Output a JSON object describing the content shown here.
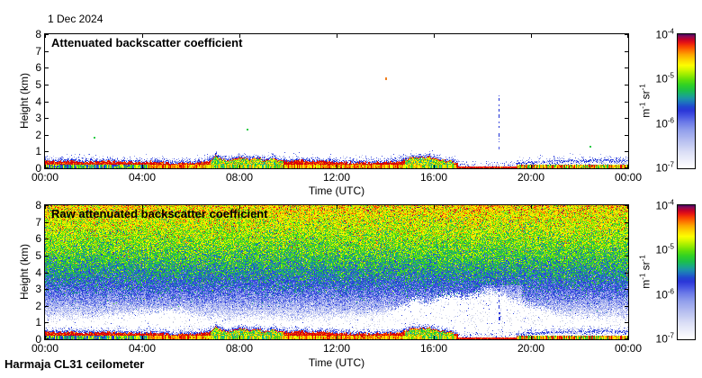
{
  "figure": {
    "date_label": "1 Dec 2024",
    "footer": "Harmaja CL31 ceilometer",
    "background": "#ffffff",
    "frame_color": "#000000",
    "text_color": "#000000"
  },
  "chart_data": [
    {
      "type": "heatmap",
      "title": "Attenuated backscatter coefficient",
      "xlabel": "Time (UTC)",
      "ylabel": "Height (km)",
      "x_tick_labels": [
        "00:00",
        "04:00",
        "08:00",
        "12:00",
        "16:00",
        "20:00",
        "00:00"
      ],
      "x_tick_hours": [
        0,
        4,
        8,
        12,
        16,
        20,
        24
      ],
      "y_tick_values": [
        0,
        1,
        2,
        3,
        4,
        5,
        6,
        7,
        8
      ],
      "xlim_hours": [
        0,
        24
      ],
      "ylim_km": [
        0,
        8
      ],
      "grid": false,
      "background_value": "clear (white, below 10^-7)",
      "colorbar": {
        "base": "10",
        "tick_exponents": [
          "-4",
          "-5",
          "-6",
          "-7"
        ],
        "unit_parts": [
          {
            "t": "m"
          },
          {
            "s": "-1"
          },
          {
            "t": " sr"
          },
          {
            "s": "-1"
          }
        ],
        "range_log10": [
          -7,
          -4
        ]
      },
      "spike": {
        "time_h": 18.67,
        "from_km": 4.3,
        "to_km": 0.78,
        "style": "dashed",
        "colors": [
          "#1b2fd4",
          "#4553e2"
        ]
      },
      "point_echoes": [
        {
          "time_h": 2.0,
          "height_km": 1.85,
          "color": "#22cc44"
        },
        {
          "time_h": 8.3,
          "height_km": 2.3,
          "color": "#22cc44"
        },
        {
          "time_h": 14.0,
          "height_km": 5.35,
          "color": "#f08020"
        },
        {
          "time_h": 22.4,
          "height_km": 1.3,
          "color": "#22cc44"
        }
      ]
    },
    {
      "type": "heatmap",
      "title": "Raw attenuated backscatter coefficient",
      "xlabel": "Time (UTC)",
      "ylabel": "Height (km)",
      "x_tick_labels": [
        "00:00",
        "04:00",
        "08:00",
        "12:00",
        "16:00",
        "20:00",
        "00:00"
      ],
      "x_tick_hours": [
        0,
        4,
        8,
        12,
        16,
        20,
        24
      ],
      "y_tick_values": [
        0,
        1,
        2,
        3,
        4,
        5,
        6,
        7,
        8
      ],
      "xlim_hours": [
        0,
        24
      ],
      "ylim_km": [
        0,
        8
      ],
      "grid": false,
      "colorbar": {
        "base": "10",
        "tick_exponents": [
          "-4",
          "-5",
          "-6",
          "-7"
        ],
        "unit_parts": [
          {
            "t": "m"
          },
          {
            "s": "-1"
          },
          {
            "t": " sr"
          },
          {
            "s": "-1"
          }
        ],
        "range_log10": [
          -7,
          -4
        ]
      },
      "noise_mean_log10_by_km": [
        [
          0.8,
          -6.95
        ],
        [
          1.2,
          -6.75
        ],
        [
          1.6,
          -6.55
        ],
        [
          2.0,
          -6.3
        ],
        [
          2.5,
          -6.02
        ],
        [
          3.0,
          -5.78
        ],
        [
          3.5,
          -5.58
        ],
        [
          4.0,
          -5.42
        ],
        [
          4.5,
          -5.28
        ],
        [
          5.0,
          -5.15
        ],
        [
          5.5,
          -5.04
        ],
        [
          6.0,
          -4.94
        ],
        [
          6.5,
          -4.85
        ],
        [
          7.0,
          -4.77
        ],
        [
          7.5,
          -4.67
        ],
        [
          8.0,
          -4.57
        ]
      ],
      "noise_sigma_log10": 0.26,
      "clear_gap_top_km": [
        [
          0,
          0.95
        ],
        [
          1,
          1.0
        ],
        [
          2,
          1.05
        ],
        [
          3,
          1.2
        ],
        [
          4,
          1.35
        ],
        [
          5,
          1.45
        ],
        [
          5.8,
          1.35
        ],
        [
          6.5,
          1.0
        ],
        [
          7,
          0.85
        ],
        [
          7.5,
          0.9
        ],
        [
          8,
          0.95
        ],
        [
          9,
          1.05
        ],
        [
          10,
          1.0
        ],
        [
          11,
          0.95
        ],
        [
          12,
          1.05
        ],
        [
          13,
          1.15
        ],
        [
          14,
          1.3
        ],
        [
          14.7,
          1.7
        ],
        [
          15.2,
          2.1
        ],
        [
          15.7,
          1.9
        ],
        [
          16.2,
          2.2
        ],
        [
          16.8,
          2.4
        ],
        [
          17.3,
          2.2
        ],
        [
          17.8,
          2.5
        ],
        [
          18.3,
          2.6
        ],
        [
          18.8,
          2.45
        ],
        [
          19.3,
          2.1
        ],
        [
          19.8,
          1.8
        ],
        [
          20.5,
          1.5
        ],
        [
          21.2,
          1.25
        ],
        [
          22,
          1.1
        ],
        [
          23,
          1.0
        ],
        [
          24,
          0.95
        ]
      ],
      "quiet_column_hours": [
        17.9,
        19.6
      ],
      "spike": {
        "time_h": 18.67,
        "from_km": 3.1,
        "to_km": 0.8,
        "style": "dashed",
        "colors": [
          "#1b2fd4",
          "#2b36d8"
        ]
      }
    }
  ],
  "surface_layer": {
    "band_top_km": [
      [
        0,
        0.55
      ],
      [
        0.5,
        0.5
      ],
      [
        1,
        0.52
      ],
      [
        1.5,
        0.48
      ],
      [
        2,
        0.5
      ],
      [
        2.5,
        0.52
      ],
      [
        3,
        0.48
      ],
      [
        3.5,
        0.45
      ],
      [
        4,
        0.42
      ],
      [
        4.5,
        0.5
      ],
      [
        5,
        0.45
      ],
      [
        5.3,
        0.35
      ],
      [
        5.6,
        0.42
      ],
      [
        6,
        0.4
      ],
      [
        6.4,
        0.45
      ],
      [
        6.8,
        0.55
      ],
      [
        7.0,
        0.85
      ],
      [
        7.2,
        0.7
      ],
      [
        7.5,
        0.55
      ],
      [
        7.8,
        0.65
      ],
      [
        8.1,
        0.75
      ],
      [
        8.4,
        0.6
      ],
      [
        8.7,
        0.7
      ],
      [
        9.0,
        0.55
      ],
      [
        9.3,
        0.7
      ],
      [
        9.6,
        0.6
      ],
      [
        10,
        0.5
      ],
      [
        10.5,
        0.55
      ],
      [
        11,
        0.5
      ],
      [
        11.5,
        0.52
      ],
      [
        12,
        0.45
      ],
      [
        12.5,
        0.42
      ],
      [
        13,
        0.45
      ],
      [
        13.5,
        0.42
      ],
      [
        14,
        0.45
      ],
      [
        14.5,
        0.48
      ],
      [
        14.9,
        0.65
      ],
      [
        15.2,
        0.8
      ],
      [
        15.5,
        0.7
      ],
      [
        15.8,
        0.8
      ],
      [
        16.1,
        0.65
      ],
      [
        16.4,
        0.55
      ],
      [
        16.7,
        0.5
      ],
      [
        17.0,
        0.35
      ],
      [
        17.4,
        0.28
      ],
      [
        18,
        0.25
      ],
      [
        18.6,
        0.22
      ],
      [
        19,
        0.26
      ],
      [
        19.4,
        0.32
      ],
      [
        19.8,
        0.35
      ],
      [
        20.3,
        0.4
      ],
      [
        21,
        0.45
      ],
      [
        21.6,
        0.5
      ],
      [
        22,
        0.46
      ],
      [
        22.5,
        0.5
      ],
      [
        23,
        0.52
      ],
      [
        23.5,
        0.46
      ],
      [
        24,
        0.5
      ]
    ],
    "regions": {
      "cool_bottom_hours": [
        [
          0,
          4.2
        ]
      ],
      "colorful_interior_hours": [
        [
          6.8,
          9.8
        ],
        [
          14.8,
          16.8
        ]
      ],
      "thin_band_hours": [
        [
          17.0,
          19.4
        ]
      ],
      "speckled_band_hours": [
        [
          19.4,
          24
        ]
      ]
    },
    "palettes": {
      "cool": [
        "#1dc434",
        "#18b0a0",
        "#2234cc",
        "#7ee400",
        "#3347e0",
        "#fdfd00"
      ],
      "colorful": [
        "#1dc434",
        "#fdfd00",
        "#7ee400",
        "#18b0a0",
        "#fda600"
      ],
      "warm": [
        "#fda600",
        "#fdfd00",
        "#f87000",
        "#e00000",
        "#c8f200"
      ],
      "late": [
        "#e00000",
        "#fda600",
        "#1dc434",
        "#fdfd00"
      ]
    },
    "colors": {
      "core_reds": [
        "#a81028",
        "#e00000",
        "#f83c00",
        "#c00020",
        "#fda600"
      ],
      "cap_blues": [
        "#1b2fd4",
        "#3347e0",
        "#8898ea",
        "#b8c0f0"
      ],
      "speckle_blues": [
        "#4553e2",
        "#8898ea",
        "#b8c0f0"
      ],
      "speckle_grays": [
        "#c9cdde",
        "#dadef6"
      ]
    }
  },
  "colormap": {
    "value_range_log10": [
      -7,
      -4
    ],
    "stops": [
      [
        0.0,
        "#ffffff"
      ],
      [
        0.05,
        "#f0f1fb"
      ],
      [
        0.12,
        "#dadef6"
      ],
      [
        0.2,
        "#b8c0f0"
      ],
      [
        0.28,
        "#93a0ec"
      ],
      [
        0.34,
        "#6d7ce8"
      ],
      [
        0.39,
        "#4553e2"
      ],
      [
        0.43,
        "#2b36d8"
      ],
      [
        0.46,
        "#2049cf"
      ],
      [
        0.49,
        "#1e6fc0"
      ],
      [
        0.52,
        "#1c93a8"
      ],
      [
        0.55,
        "#19ad7c"
      ],
      [
        0.58,
        "#1cbf4a"
      ],
      [
        0.62,
        "#2ed026"
      ],
      [
        0.66,
        "#5ede0a"
      ],
      [
        0.7,
        "#9cec00"
      ],
      [
        0.74,
        "#d8f800"
      ],
      [
        0.77,
        "#fdfd00"
      ],
      [
        0.81,
        "#fdd500"
      ],
      [
        0.85,
        "#fda600"
      ],
      [
        0.88,
        "#fd7400"
      ],
      [
        0.91,
        "#f84400"
      ],
      [
        0.94,
        "#e61414"
      ],
      [
        0.965,
        "#c00028"
      ],
      [
        0.985,
        "#8e0a52"
      ],
      [
        1.0,
        "#55075e"
      ]
    ]
  }
}
